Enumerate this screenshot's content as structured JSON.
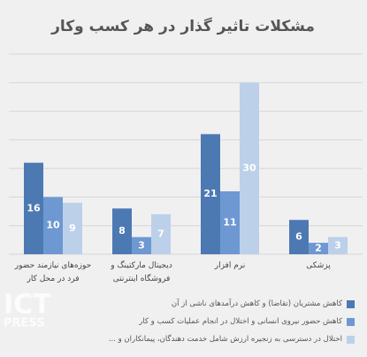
{
  "chart_data": {
    "type": "bar",
    "title": "مشکلات تاثیر گذار در هر کسب وکار",
    "categories": [
      "حوزه‌های نیازمند حضور فرد در محل کار",
      "دیجیتال مارکتینگ و فروشگاه اینترنتی",
      "نرم افزار",
      "پزشکی"
    ],
    "series": [
      {
        "name": "کاهش مشتریان (تقاضا) و کاهش درآمدهای ناشی از آن",
        "color": "#4d79b3",
        "values": [
          16,
          8,
          21,
          6
        ]
      },
      {
        "name": "کاهش حضور نیروی انسانی و اختلال در انجام عملیات کسب و کار",
        "color": "#6d98d2",
        "values": [
          10,
          3,
          11,
          2
        ]
      },
      {
        "name": "اختلال در دسترسی به زنجیره ارزش شامل خدمت دهندگان، پیمانکاران و ...",
        "color": "#bcd0ea",
        "values": [
          9,
          7,
          30,
          3
        ]
      }
    ],
    "ylim": [
      0,
      35
    ],
    "yticks": [
      0,
      5,
      10,
      15,
      20,
      25,
      30,
      35
    ],
    "grid": true,
    "watermark": [
      "ICT",
      "PRESS"
    ]
  }
}
